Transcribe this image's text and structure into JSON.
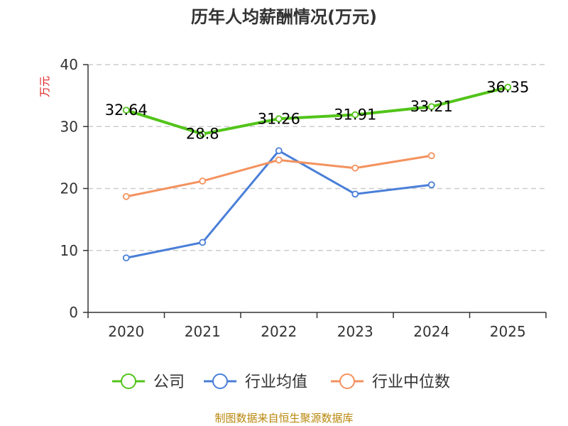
{
  "chart_data": {
    "type": "line",
    "title": "历年人均薪酬情况(万元)",
    "ylabel": "万元",
    "xlabel": "",
    "categories": [
      "2020",
      "2021",
      "2022",
      "2023",
      "2024",
      "2025"
    ],
    "ylim": [
      0,
      40
    ],
    "yticks": [
      0,
      10,
      20,
      30,
      40
    ],
    "grid": true,
    "legend_position": "bottom",
    "series": [
      {
        "name": "公司",
        "color": "#52c41a",
        "values": [
          32.64,
          28.8,
          31.26,
          31.91,
          33.21,
          36.35
        ],
        "labels": [
          "32.64",
          "28.8",
          "31.26",
          "31.91",
          "33.21",
          "36.35"
        ]
      },
      {
        "name": "行业均值",
        "color": "#4a7fd8",
        "values": [
          8.8,
          11.3,
          26.1,
          19.1,
          20.6,
          null
        ]
      },
      {
        "name": "行业中位数",
        "color": "#f4925e",
        "values": [
          18.7,
          21.2,
          24.6,
          23.3,
          25.3,
          null
        ]
      }
    ]
  },
  "footer": {
    "source": "制图数据来自恒生聚源数据库"
  }
}
